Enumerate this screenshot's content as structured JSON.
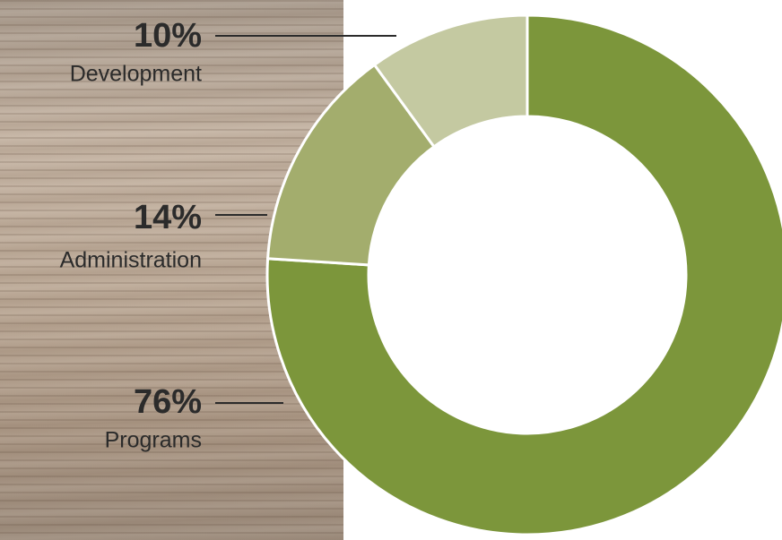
{
  "chart_data": {
    "type": "pie",
    "categories": [
      "Programs",
      "Administration",
      "Development"
    ],
    "values": [
      76,
      14,
      10
    ],
    "value_labels": [
      "76%",
      "14%",
      "10%"
    ],
    "colors": [
      "#7c963b",
      "#a3ad6d",
      "#c4c9a1"
    ]
  }
}
